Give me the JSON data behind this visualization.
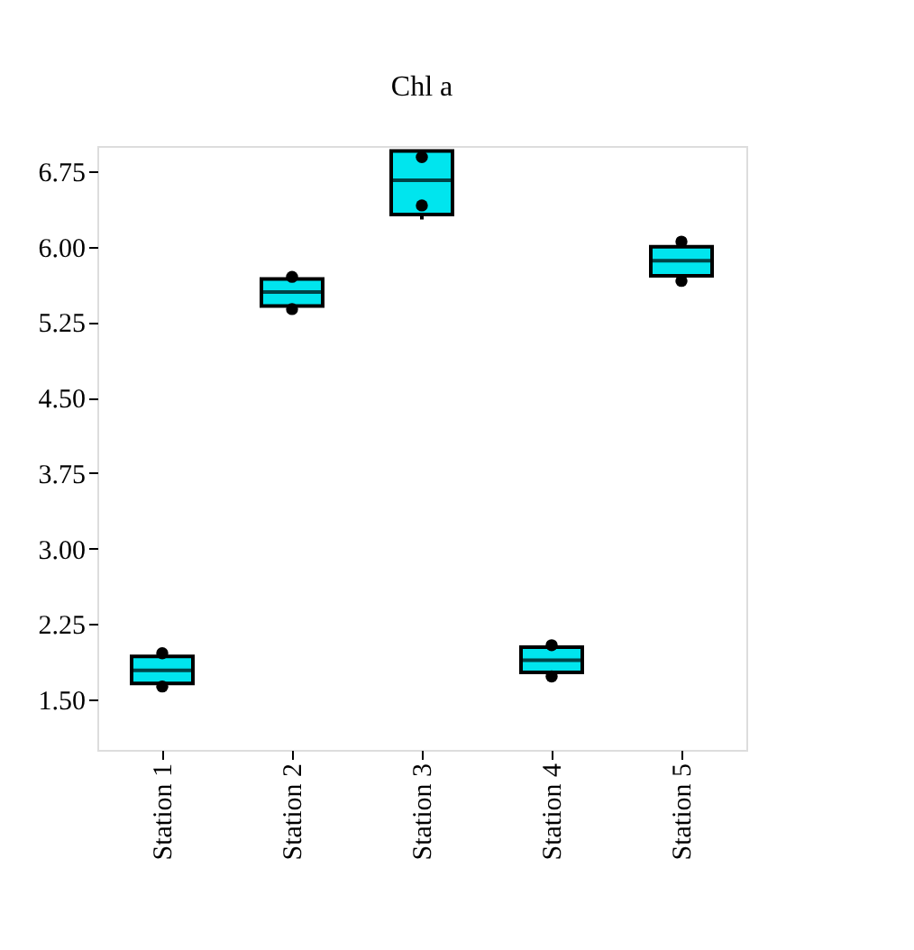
{
  "chart_data": {
    "type": "box",
    "title": "Chl a",
    "categories": [
      "Station 1",
      "Station 2",
      "Station 3",
      "Station 4",
      "Station 5"
    ],
    "series": [
      {
        "type": "box",
        "color": "#00e5ee",
        "boxes": [
          {
            "low": 1.63,
            "q1": 1.66,
            "median": 1.79,
            "q3": 1.93,
            "high": 1.96
          },
          {
            "low": 5.38,
            "q1": 5.41,
            "median": 5.55,
            "q3": 5.68,
            "high": 5.7
          },
          {
            "low": 6.27,
            "q1": 6.32,
            "median": 6.66,
            "q3": 6.95,
            "high": 6.95
          },
          {
            "low": 1.73,
            "q1": 1.77,
            "median": 1.89,
            "q3": 2.02,
            "high": 2.04
          },
          {
            "low": 5.66,
            "q1": 5.71,
            "median": 5.86,
            "q3": 6.0,
            "high": 6.05
          }
        ]
      },
      {
        "type": "scatter",
        "color": "#000000",
        "marker": "circle",
        "x": [
          "Station 1",
          "Station 1",
          "Station 2",
          "Station 2",
          "Station 3",
          "Station 3",
          "Station 4",
          "Station 4",
          "Station 5",
          "Station 5"
        ],
        "values": [
          1.63,
          1.96,
          5.38,
          5.7,
          6.41,
          6.89,
          1.73,
          2.04,
          5.66,
          6.05
        ]
      }
    ],
    "ylim": [
      1.0,
      7.0
    ],
    "yticks": [
      {
        "value": 1.5,
        "label": "1.50"
      },
      2.25,
      {
        "value": 3,
        "label": "3.00"
      },
      3.75,
      {
        "value": 4.5,
        "label": "4.50"
      },
      5.25,
      {
        "value": 6,
        "label": "6.00"
      },
      6.75
    ]
  }
}
